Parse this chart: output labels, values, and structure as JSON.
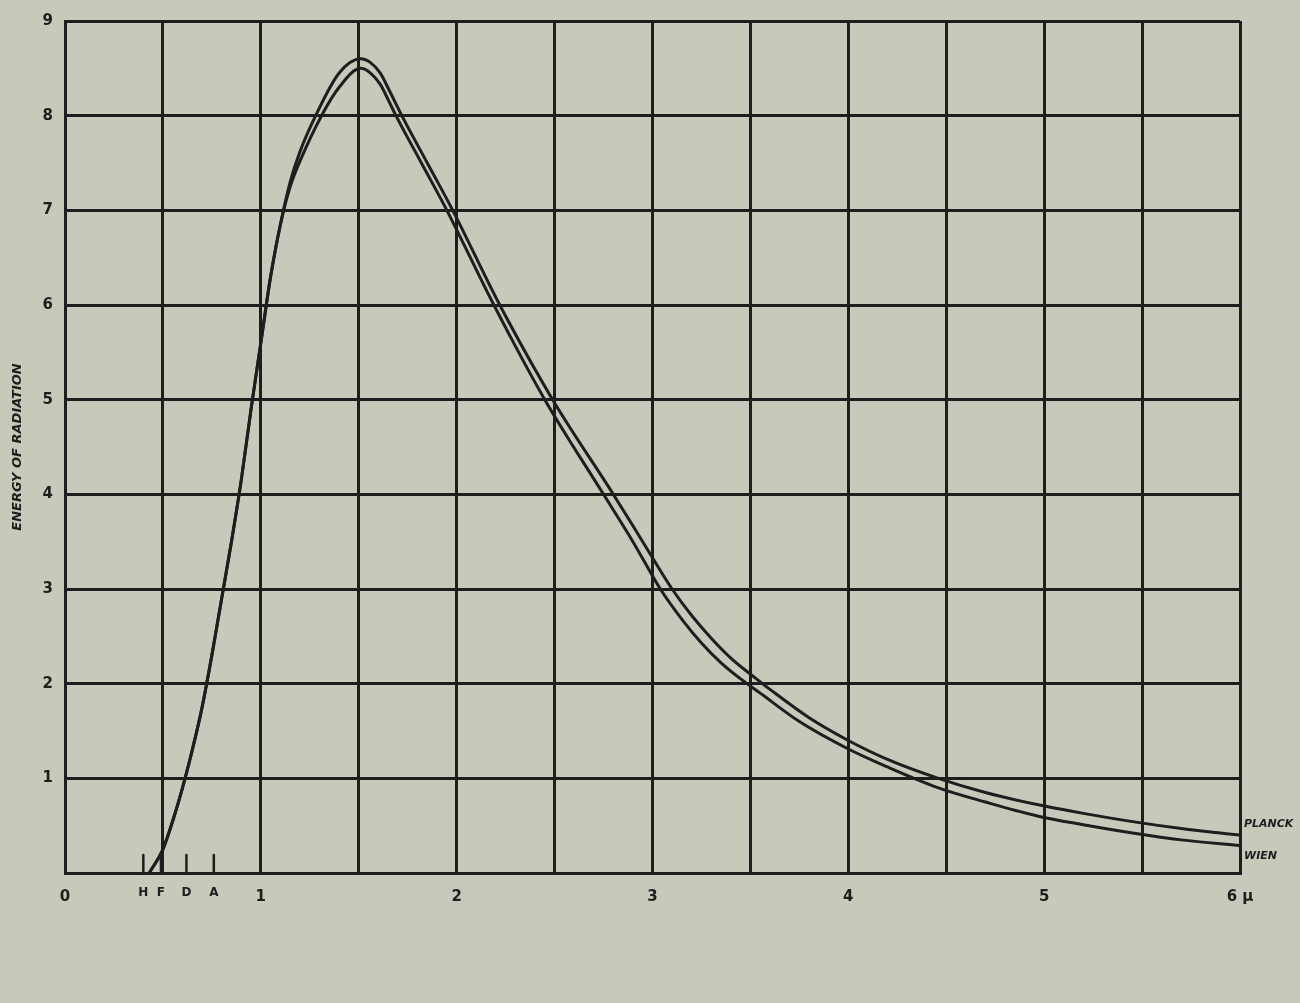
{
  "chart_data": {
    "type": "line",
    "ylabel": "ENERGY OF RADIATION",
    "xlim": [
      0,
      6
    ],
    "xticks": [
      0,
      {
        "value": 0.5,
        "label": null
      },
      1,
      {
        "value": 1.5,
        "label": null
      },
      2,
      {
        "value": 2.5,
        "label": null
      },
      3,
      {
        "value": 3.5,
        "label": null
      },
      4,
      {
        "value": 4.5,
        "label": null
      },
      5,
      {
        "value": 5.5,
        "label": null
      },
      {
        "value": 6,
        "label": "6 μ"
      }
    ],
    "ylim": [
      0,
      9
    ],
    "yticks": [
      {
        "value": 0,
        "label": null
      },
      1,
      2,
      3,
      4,
      5,
      6,
      7,
      8,
      9
    ],
    "grid": true,
    "series": [
      {
        "name": "PLANCK",
        "color": "#1e1e1e",
        "x": [
          0.43,
          0.5,
          0.55,
          0.6,
          0.65,
          0.7,
          0.75,
          0.8,
          0.85,
          0.9,
          0.95,
          1.0,
          1.05,
          1.1,
          1.15,
          1.2,
          1.28,
          1.4,
          1.51,
          1.56,
          1.61,
          1.66,
          1.72,
          1.85,
          1.98,
          2.22,
          2.49,
          2.8,
          2.95,
          3.1,
          3.2,
          3.3,
          3.4,
          3.5,
          3.6,
          3.8,
          4.0,
          4.2,
          4.46,
          4.7,
          4.97,
          5.2,
          5.46,
          5.7,
          6.0
        ],
        "values": [
          0,
          0.25,
          0.55,
          0.9,
          1.3,
          1.75,
          2.3,
          2.9,
          3.5,
          4.15,
          4.9,
          5.6,
          6.3,
          6.85,
          7.3,
          7.62,
          8.0,
          8.45,
          8.6,
          8.56,
          8.45,
          8.25,
          8.0,
          7.5,
          7.0,
          6.0,
          5.0,
          4.0,
          3.5,
          3.0,
          2.72,
          2.48,
          2.27,
          2.1,
          1.94,
          1.64,
          1.4,
          1.2,
          1.0,
          0.85,
          0.72,
          0.63,
          0.54,
          0.47,
          0.4
        ]
      },
      {
        "name": "WIEN",
        "color": "#1e1e1e",
        "x": [
          0.43,
          0.5,
          0.55,
          0.6,
          0.65,
          0.7,
          0.75,
          0.8,
          0.85,
          0.9,
          0.95,
          1.0,
          1.05,
          1.1,
          1.15,
          1.2,
          1.31,
          1.4,
          1.51,
          1.56,
          1.61,
          1.65,
          1.69,
          1.82,
          1.95,
          2.19,
          2.45,
          2.75,
          2.9,
          3.04,
          3.15,
          3.25,
          3.35,
          3.45,
          3.55,
          3.75,
          4.0,
          4.2,
          4.46,
          4.7,
          4.97,
          5.2,
          5.46,
          5.7,
          6.0
        ],
        "values": [
          0,
          0.25,
          0.55,
          0.9,
          1.3,
          1.75,
          2.3,
          2.9,
          3.5,
          4.15,
          4.9,
          5.6,
          6.3,
          6.85,
          7.25,
          7.52,
          8.0,
          8.3,
          8.5,
          8.45,
          8.33,
          8.17,
          8.0,
          7.5,
          7.0,
          6.0,
          5.0,
          4.0,
          3.5,
          3.0,
          2.68,
          2.43,
          2.22,
          2.05,
          1.9,
          1.6,
          1.31,
          1.12,
          0.9,
          0.75,
          0.6,
          0.51,
          0.42,
          0.35,
          0.29
        ]
      }
    ],
    "ref_lines": [
      {
        "axis": "x",
        "value": 0.4,
        "label": "H"
      },
      {
        "axis": "x",
        "value": 0.49,
        "label": "F"
      },
      {
        "axis": "x",
        "value": 0.62,
        "label": "D"
      },
      {
        "axis": "x",
        "value": 0.76,
        "label": "A"
      }
    ]
  }
}
